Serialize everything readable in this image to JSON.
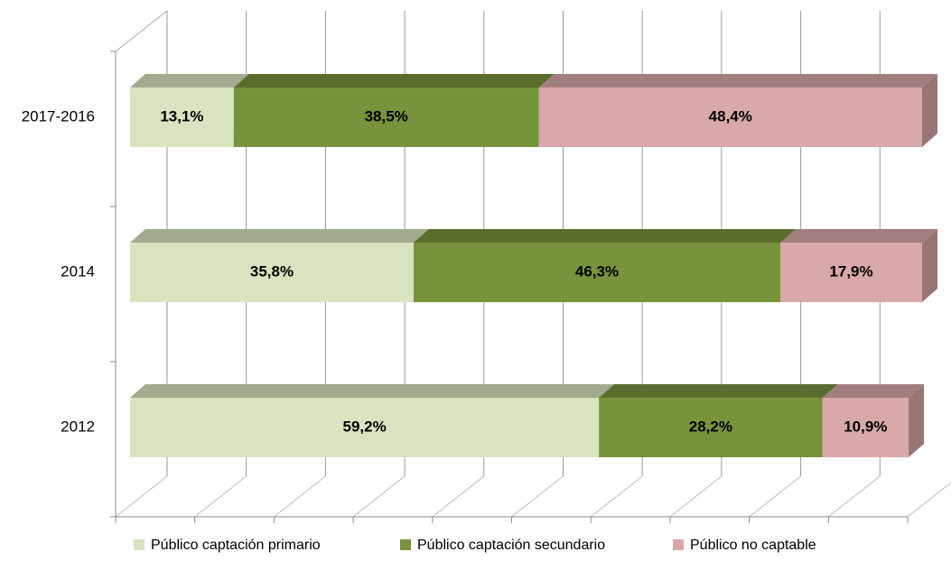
{
  "chart_data": {
    "type": "bar",
    "orientation": "horizontal",
    "stacked": true,
    "three_d": true,
    "categories": [
      "2017-2016",
      "2014",
      "2012"
    ],
    "series": [
      {
        "name": "Público captación primario",
        "color": "#d7e4bd",
        "values": [
          13.1,
          35.8,
          59.2
        ],
        "value_labels": [
          "13,1%",
          "35,8%",
          "59,2%"
        ]
      },
      {
        "name": "Público captación secundario",
        "color": "#77933c",
        "values": [
          38.5,
          46.3,
          28.2
        ],
        "value_labels": [
          "38,5%",
          "46,3%",
          "28,2%"
        ]
      },
      {
        "name": "Público no captable",
        "color": "#d9a8a8",
        "values": [
          48.4,
          17.9,
          10.9
        ],
        "value_labels": [
          "48,4%",
          "17,9%",
          "10,9%"
        ]
      }
    ],
    "xlim": [
      0,
      100
    ],
    "xticks": [
      0,
      10,
      20,
      30,
      40,
      50,
      60,
      70,
      80,
      90,
      100
    ],
    "grid": true,
    "legend": "bottom"
  }
}
